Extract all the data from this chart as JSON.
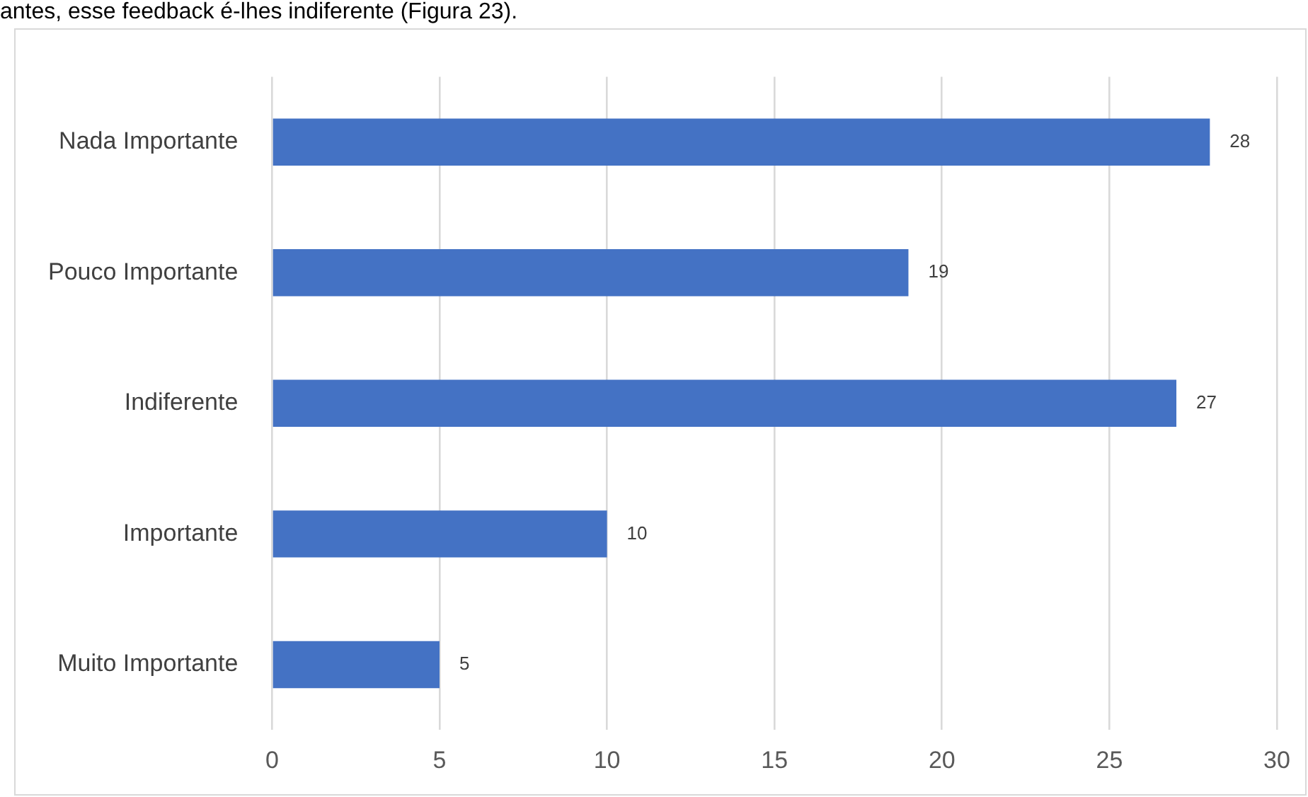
{
  "chart_data": {
    "type": "bar",
    "orientation": "horizontal",
    "categories": [
      "Nada Importante",
      "Pouco Importante",
      "Indiferente",
      "Importante",
      "Muito Importante"
    ],
    "values": [
      28,
      19,
      27,
      10,
      5
    ],
    "color": "#4472c4",
    "xlim": [
      0,
      30
    ],
    "xticks": [
      0,
      5,
      10,
      15,
      20,
      25,
      30
    ],
    "grid": "x",
    "data_labels": true,
    "legend": false,
    "annotations": [
      "antes, esse feedback é-lhes indiferente (Figura 23)."
    ]
  }
}
